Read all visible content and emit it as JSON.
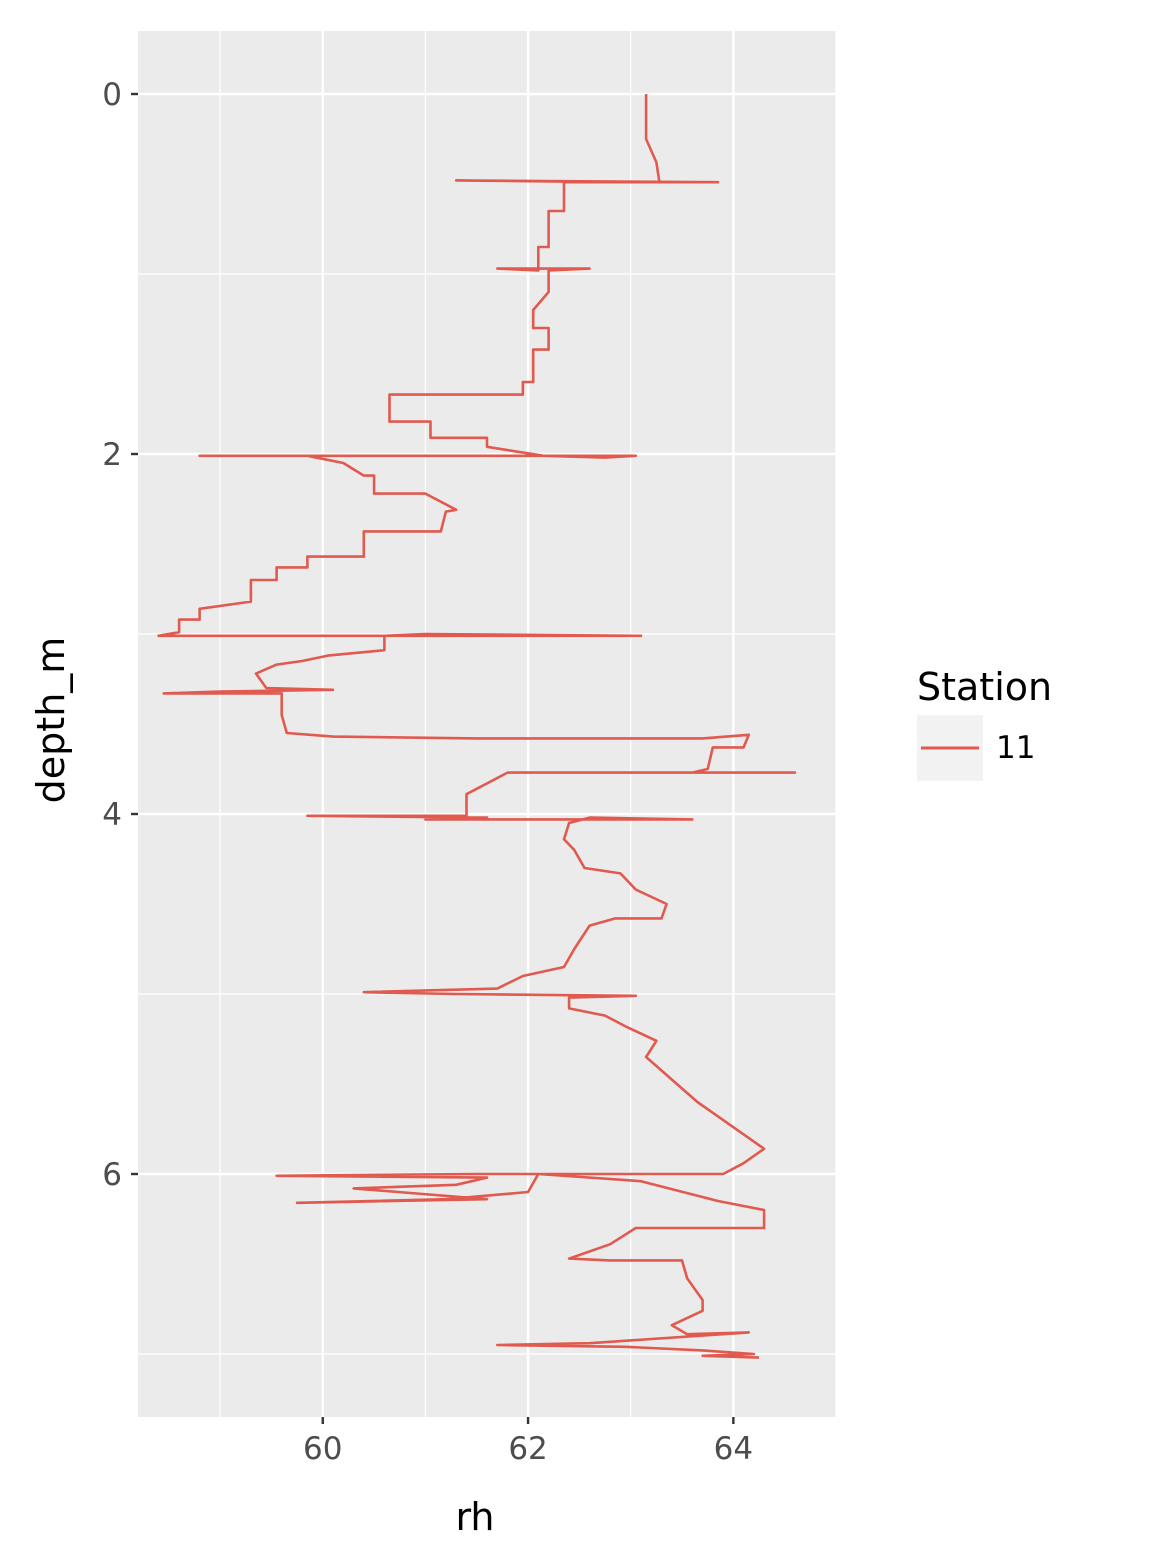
{
  "chart_data": {
    "type": "line",
    "title": "",
    "xlabel": "rh",
    "ylabel": "depth_m",
    "xlim": [
      58.2,
      65.0
    ],
    "ylim": [
      0,
      7.4
    ],
    "y_reversed": true,
    "x_ticks": [
      60,
      62,
      64
    ],
    "y_ticks": [
      0,
      2,
      4,
      6
    ],
    "x_tick_labels": [
      "60",
      "62",
      "64"
    ],
    "y_tick_labels": [
      "0",
      "2",
      "4",
      "6"
    ],
    "grid": true,
    "legend_position": "right",
    "legend": {
      "title": "Station",
      "entries": [
        "11"
      ]
    },
    "colors": {
      "series": "#e05a4f",
      "panel": "#ebebeb",
      "grid": "#ffffff",
      "legend_key_bg": "#f2f2f2"
    },
    "series": [
      {
        "name": "11",
        "points": [
          [
            63.15,
            0.0
          ],
          [
            63.15,
            0.25
          ],
          [
            63.25,
            0.38
          ],
          [
            63.28,
            0.49
          ],
          [
            62.9,
            0.49
          ],
          [
            61.3,
            0.48
          ],
          [
            63.85,
            0.49
          ],
          [
            62.7,
            0.49
          ],
          [
            62.35,
            0.49
          ],
          [
            62.35,
            0.65
          ],
          [
            62.2,
            0.65
          ],
          [
            62.2,
            0.85
          ],
          [
            62.1,
            0.85
          ],
          [
            62.1,
            0.98
          ],
          [
            61.7,
            0.97
          ],
          [
            62.6,
            0.97
          ],
          [
            62.2,
            0.98
          ],
          [
            62.2,
            1.1
          ],
          [
            62.05,
            1.2
          ],
          [
            62.05,
            1.3
          ],
          [
            62.2,
            1.3
          ],
          [
            62.2,
            1.42
          ],
          [
            62.05,
            1.42
          ],
          [
            62.05,
            1.6
          ],
          [
            61.95,
            1.6
          ],
          [
            61.95,
            1.67
          ],
          [
            60.65,
            1.67
          ],
          [
            60.65,
            1.82
          ],
          [
            61.05,
            1.82
          ],
          [
            61.05,
            1.91
          ],
          [
            61.6,
            1.91
          ],
          [
            61.6,
            1.96
          ],
          [
            62.15,
            2.01
          ],
          [
            62.75,
            2.02
          ],
          [
            63.05,
            2.01
          ],
          [
            61.3,
            2.01
          ],
          [
            60.9,
            2.01
          ],
          [
            58.8,
            2.01
          ],
          [
            59.85,
            2.01
          ],
          [
            60.2,
            2.05
          ],
          [
            60.4,
            2.12
          ],
          [
            60.5,
            2.12
          ],
          [
            60.5,
            2.22
          ],
          [
            61.0,
            2.22
          ],
          [
            61.3,
            2.31
          ],
          [
            61.2,
            2.32
          ],
          [
            61.15,
            2.43
          ],
          [
            60.4,
            2.43
          ],
          [
            60.4,
            2.57
          ],
          [
            59.85,
            2.57
          ],
          [
            59.85,
            2.63
          ],
          [
            59.55,
            2.63
          ],
          [
            59.55,
            2.7
          ],
          [
            59.3,
            2.7
          ],
          [
            59.3,
            2.82
          ],
          [
            58.8,
            2.86
          ],
          [
            58.8,
            2.92
          ],
          [
            58.6,
            2.92
          ],
          [
            58.6,
            2.99
          ],
          [
            58.4,
            3.01
          ],
          [
            63.1,
            3.01
          ],
          [
            61.0,
            3.0
          ],
          [
            60.6,
            3.01
          ],
          [
            60.6,
            3.09
          ],
          [
            60.05,
            3.12
          ],
          [
            59.8,
            3.15
          ],
          [
            59.55,
            3.17
          ],
          [
            59.35,
            3.22
          ],
          [
            59.45,
            3.3
          ],
          [
            60.1,
            3.31
          ],
          [
            59.0,
            3.32
          ],
          [
            58.45,
            3.33
          ],
          [
            59.6,
            3.33
          ],
          [
            59.6,
            3.45
          ],
          [
            59.65,
            3.55
          ],
          [
            60.1,
            3.57
          ],
          [
            61.5,
            3.58
          ],
          [
            63.7,
            3.58
          ],
          [
            64.15,
            3.56
          ],
          [
            64.1,
            3.63
          ],
          [
            63.8,
            3.63
          ],
          [
            63.75,
            3.75
          ],
          [
            63.6,
            3.77
          ],
          [
            63.0,
            3.77
          ],
          [
            64.6,
            3.77
          ],
          [
            61.8,
            3.77
          ],
          [
            61.4,
            3.89
          ],
          [
            61.4,
            4.01
          ],
          [
            59.85,
            4.01
          ],
          [
            61.6,
            4.02
          ],
          [
            61.0,
            4.03
          ],
          [
            63.6,
            4.03
          ],
          [
            62.6,
            4.02
          ],
          [
            62.4,
            4.05
          ],
          [
            62.35,
            4.14
          ],
          [
            62.45,
            4.2
          ],
          [
            62.55,
            4.3
          ],
          [
            62.9,
            4.33
          ],
          [
            63.05,
            4.42
          ],
          [
            63.35,
            4.5
          ],
          [
            63.3,
            4.58
          ],
          [
            62.85,
            4.58
          ],
          [
            62.6,
            4.62
          ],
          [
            62.45,
            4.75
          ],
          [
            62.35,
            4.85
          ],
          [
            61.95,
            4.9
          ],
          [
            61.7,
            4.97
          ],
          [
            60.4,
            4.99
          ],
          [
            61.3,
            5.0
          ],
          [
            63.05,
            5.01
          ],
          [
            62.4,
            5.02
          ],
          [
            62.4,
            5.08
          ],
          [
            62.75,
            5.12
          ],
          [
            62.95,
            5.18
          ],
          [
            63.25,
            5.26
          ],
          [
            63.15,
            5.35
          ],
          [
            63.35,
            5.45
          ],
          [
            63.65,
            5.6
          ],
          [
            63.85,
            5.68
          ],
          [
            64.05,
            5.76
          ],
          [
            64.3,
            5.86
          ],
          [
            64.1,
            5.94
          ],
          [
            63.9,
            6.0
          ],
          [
            62.1,
            6.0
          ],
          [
            61.5,
            6.0
          ],
          [
            59.55,
            6.01
          ],
          [
            61.6,
            6.02
          ],
          [
            61.3,
            6.06
          ],
          [
            60.3,
            6.08
          ],
          [
            61.6,
            6.14
          ],
          [
            59.75,
            6.16
          ],
          [
            61.2,
            6.14
          ],
          [
            62.0,
            6.1
          ],
          [
            62.1,
            6.0
          ],
          [
            63.1,
            6.04
          ],
          [
            63.85,
            6.15
          ],
          [
            64.3,
            6.2
          ],
          [
            64.3,
            6.3
          ],
          [
            63.05,
            6.3
          ],
          [
            62.8,
            6.39
          ],
          [
            62.4,
            6.47
          ],
          [
            62.8,
            6.48
          ],
          [
            63.5,
            6.48
          ],
          [
            63.55,
            6.58
          ],
          [
            63.7,
            6.7
          ],
          [
            63.7,
            6.76
          ],
          [
            63.4,
            6.84
          ],
          [
            63.55,
            6.89
          ],
          [
            64.15,
            6.88
          ],
          [
            62.6,
            6.94
          ],
          [
            61.7,
            6.95
          ],
          [
            62.95,
            6.96
          ],
          [
            63.7,
            6.98
          ],
          [
            64.2,
            7.0
          ],
          [
            63.7,
            7.01
          ],
          [
            64.25,
            7.02
          ]
        ]
      }
    ]
  }
}
